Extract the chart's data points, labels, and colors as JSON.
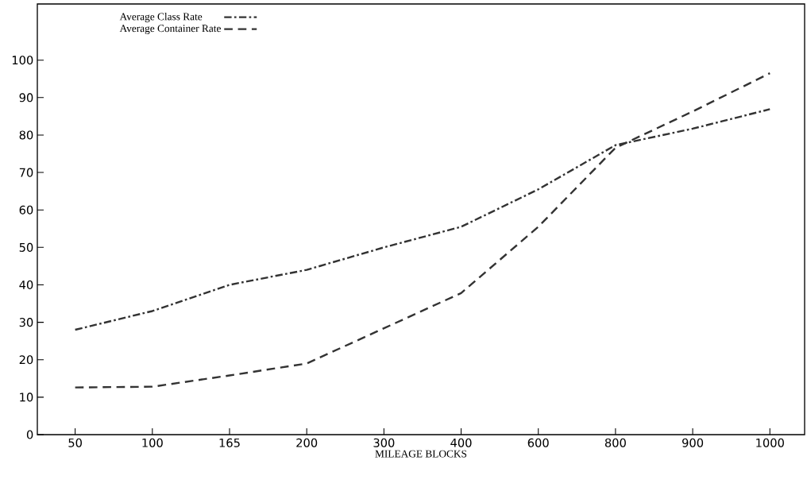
{
  "chart_data": {
    "type": "line",
    "xlabel": "MILEAGE BLOCKS",
    "categories": [
      "50",
      "100",
      "165",
      "200",
      "300",
      "400",
      "600",
      "800",
      "900",
      "1000"
    ],
    "series": [
      {
        "name": "Average Class Rate",
        "color": "#333333",
        "line_style": "dashdot",
        "values": [
          28,
          33,
          40,
          44,
          50,
          55.5,
          65.5,
          77.3,
          81.7,
          86.9
        ]
      },
      {
        "name": "Average Container Rate",
        "color": "#333333",
        "line_style": "dashed",
        "values": [
          12.6,
          12.8,
          15.8,
          19,
          28.4,
          37.8,
          55.5,
          76.6,
          86.3,
          96.5
        ]
      }
    ],
    "ylim": [
      0,
      115
    ],
    "yticks": [
      0,
      10,
      20,
      30,
      40,
      50,
      60,
      70,
      80,
      90,
      100
    ],
    "grid": false,
    "legend": "top left",
    "marker": "none"
  }
}
